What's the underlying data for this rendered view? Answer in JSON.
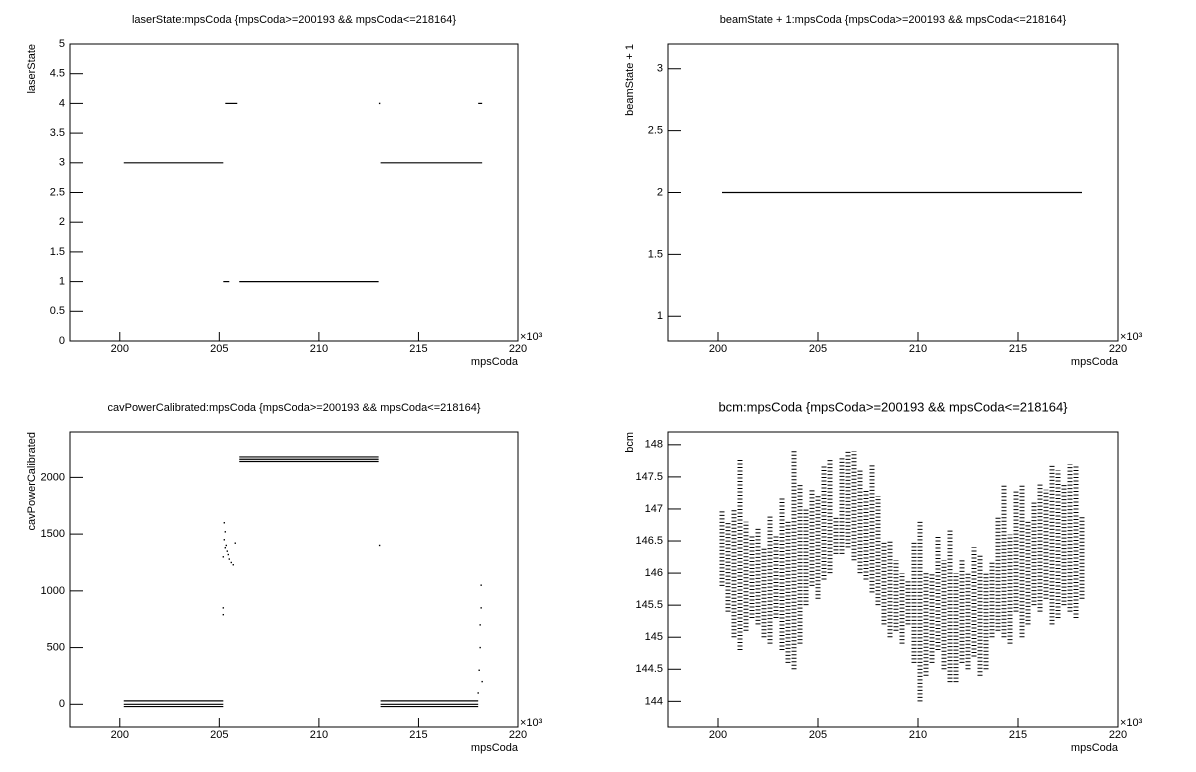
{
  "chart_data": [
    {
      "type": "line",
      "title": "laserState:mpsCoda {mpsCoda>=200193 && mpsCoda<=218164}",
      "xlabel": "mpsCoda",
      "ylabel": "laserState",
      "x_multiplier": "×10³",
      "xlim": [
        197.5,
        220
      ],
      "xticks": [
        200,
        205,
        210,
        215,
        220
      ],
      "ylim": [
        0,
        5
      ],
      "yticks": [
        0,
        0.5,
        1,
        1.5,
        2,
        2.5,
        3,
        3.5,
        4,
        4.5,
        5
      ],
      "series": [
        {
          "color": "#000000",
          "x": [
            200.2,
            205.2,
            null,
            205.3,
            205.9,
            null,
            205.2,
            205.5,
            null,
            206,
            213,
            null,
            213.1,
            218.2,
            null,
            213.05,
            null,
            218,
            218.2
          ],
          "values": [
            3,
            3,
            null,
            4,
            4,
            null,
            1,
            1,
            null,
            1,
            1,
            null,
            3,
            3,
            null,
            4,
            null,
            4,
            4
          ]
        }
      ]
    },
    {
      "type": "line",
      "title": "beamState + 1:mpsCoda {mpsCoda>=200193 && mpsCoda<=218164}",
      "xlabel": "mpsCoda",
      "ylabel": "beamState + 1",
      "x_multiplier": "×10³",
      "xlim": [
        197.5,
        220
      ],
      "xticks": [
        200,
        205,
        210,
        215,
        220
      ],
      "ylim": [
        0.8,
        3.2
      ],
      "yticks": [
        1,
        1.5,
        2,
        2.5,
        3
      ],
      "series": [
        {
          "color": "#000000",
          "x": [
            200.2,
            218.2
          ],
          "values": [
            2,
            2
          ]
        }
      ]
    },
    {
      "type": "line",
      "title": "cavPowerCalibrated:mpsCoda {mpsCoda>=200193 && mpsCoda<=218164}",
      "xlabel": "mpsCoda",
      "ylabel": "cavPowerCalibrated",
      "x_multiplier": "×10³",
      "xlim": [
        197.5,
        220
      ],
      "xticks": [
        200,
        205,
        210,
        215,
        220
      ],
      "ylim": [
        -200,
        2400
      ],
      "yticks": [
        0,
        500,
        1000,
        1500,
        2000
      ],
      "series": [
        {
          "color": "#000000",
          "x": [
            200.2,
            205.2,
            null,
            200.2,
            205.2,
            null,
            200.2,
            205.2,
            null,
            206,
            213,
            null,
            206,
            213,
            null,
            206,
            213,
            null,
            213.1,
            218,
            null,
            213.1,
            218,
            null,
            213.1,
            218,
            null,
            205.2,
            null,
            205.25,
            null,
            205.3,
            null,
            205.35,
            null,
            205.4,
            null,
            205.5,
            null,
            205.6,
            null,
            205.7,
            null,
            205.8,
            null,
            205.25,
            null,
            205.3,
            null,
            205.45,
            null,
            205.2,
            null,
            205.2,
            null,
            213.05,
            null,
            218.0,
            null,
            218.05,
            null,
            218.1,
            null,
            218.1,
            null,
            218.15,
            null,
            218.15,
            null,
            218.2
          ],
          "values": [
            30,
            30,
            null,
            0,
            0,
            null,
            -20,
            -20,
            null,
            2180,
            2180,
            null,
            2160,
            2160,
            null,
            2140,
            2140,
            null,
            30,
            30,
            null,
            0,
            0,
            null,
            -20,
            -20,
            null,
            1300,
            null,
            1450,
            null,
            1520,
            null,
            1400,
            null,
            1350,
            null,
            1280,
            null,
            1250,
            null,
            1230,
            null,
            1420,
            null,
            1600,
            null,
            1380,
            null,
            1320,
            null,
            850,
            null,
            790,
            null,
            1400,
            null,
            100,
            null,
            300,
            null,
            500,
            null,
            700,
            null,
            850,
            null,
            1050,
            null,
            200
          ]
        }
      ]
    },
    {
      "type": "range",
      "title": "bcm:mpsCoda {mpsCoda>=200193 && mpsCoda<=218164}",
      "xlabel": "mpsCoda",
      "ylabel": "bcm",
      "x_multiplier": "×10³",
      "xlim": [
        197.5,
        220
      ],
      "xticks": [
        200,
        205,
        210,
        215,
        220
      ],
      "ylim": [
        143.6,
        148.2
      ],
      "yticks": [
        144,
        144.5,
        145,
        145.5,
        146,
        146.5,
        147,
        147.5,
        148
      ],
      "series": [
        {
          "color": "#000000",
          "x": [
            200.2,
            200.5,
            200.8,
            201.1,
            201.4,
            201.7,
            202.0,
            202.3,
            202.6,
            202.9,
            203.2,
            203.5,
            203.8,
            204.1,
            204.4,
            204.7,
            205.0,
            205.3,
            205.6,
            205.9,
            206.2,
            206.5,
            206.8,
            207.1,
            207.4,
            207.7,
            208.0,
            208.3,
            208.6,
            208.9,
            209.2,
            209.5,
            209.8,
            210.1,
            210.4,
            210.7,
            211.0,
            211.3,
            211.6,
            211.9,
            212.2,
            212.5,
            212.8,
            213.1,
            213.4,
            213.7,
            214.0,
            214.3,
            214.6,
            214.9,
            215.2,
            215.5,
            215.8,
            216.1,
            216.4,
            216.7,
            217.0,
            217.3,
            217.6,
            217.9,
            218.2
          ],
          "low": [
            145.8,
            145.4,
            145.0,
            144.8,
            145.1,
            145.3,
            145.2,
            145.0,
            144.9,
            145.3,
            144.8,
            144.6,
            144.5,
            144.9,
            145.5,
            145.8,
            145.6,
            145.9,
            146.0,
            146.3,
            146.3,
            146.4,
            146.2,
            146.0,
            145.9,
            145.7,
            145.5,
            145.2,
            145.0,
            145.1,
            144.9,
            145.2,
            144.6,
            144.0,
            144.4,
            144.6,
            144.8,
            144.5,
            144.3,
            144.3,
            144.6,
            144.5,
            144.7,
            144.4,
            144.5,
            145.0,
            145.1,
            145.0,
            144.9,
            145.4,
            145.0,
            145.2,
            145.5,
            145.4,
            145.6,
            145.2,
            145.3,
            145.5,
            145.4,
            145.3,
            145.6
          ],
          "high": [
            147.0,
            146.8,
            147.0,
            147.8,
            146.8,
            146.6,
            146.7,
            146.4,
            146.9,
            146.6,
            147.2,
            146.8,
            147.9,
            147.4,
            147.0,
            147.3,
            147.2,
            147.7,
            147.8,
            146.9,
            147.8,
            147.9,
            147.9,
            147.6,
            147.3,
            147.7,
            147.2,
            146.5,
            146.5,
            146.2,
            146.0,
            145.9,
            146.5,
            146.8,
            146.0,
            146.0,
            146.6,
            146.2,
            146.7,
            146.0,
            146.2,
            146.0,
            146.4,
            146.3,
            146.0,
            146.2,
            146.9,
            147.4,
            146.6,
            147.3,
            147.4,
            146.8,
            147.1,
            147.4,
            147.3,
            147.7,
            147.6,
            147.4,
            147.7,
            147.7,
            146.9
          ]
        }
      ]
    }
  ]
}
